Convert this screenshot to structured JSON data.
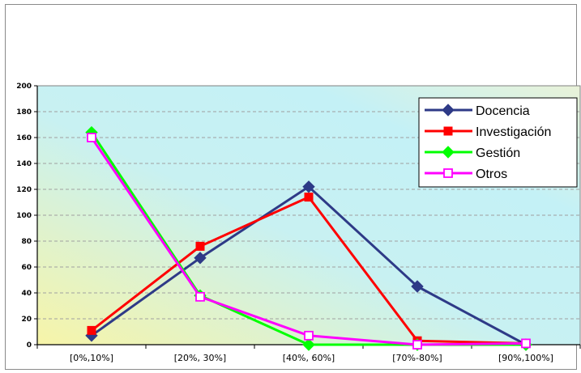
{
  "chart_data": {
    "type": "line",
    "title": "",
    "xlabel": "",
    "ylabel": "",
    "categories": [
      "[0%,10%]",
      "[20%, 30%]",
      "[40%, 60%]",
      "[70%-80%]",
      "[90%,100%]"
    ],
    "ylim": [
      0,
      200
    ],
    "yticks": [
      "0",
      "20",
      "40",
      "60",
      "80",
      "100",
      "120",
      "140",
      "160",
      "180",
      "200"
    ],
    "grid": true,
    "legend_position": "top-right",
    "series": [
      {
        "name": "Docencia",
        "values": [
          7,
          67,
          122,
          45,
          0
        ],
        "color": "#2e3a87",
        "marker": "diamond"
      },
      {
        "name": "Investigación",
        "values": [
          11,
          76,
          114,
          3,
          1
        ],
        "color": "#ff0000",
        "marker": "square"
      },
      {
        "name": "Gestión",
        "values": [
          164,
          38,
          0,
          0,
          0
        ],
        "color": "#00ff00",
        "marker": "diamond"
      },
      {
        "name": "Otros",
        "values": [
          160,
          37,
          7,
          0,
          1
        ],
        "color": "#ff00ff",
        "marker": "square-open"
      }
    ]
  }
}
